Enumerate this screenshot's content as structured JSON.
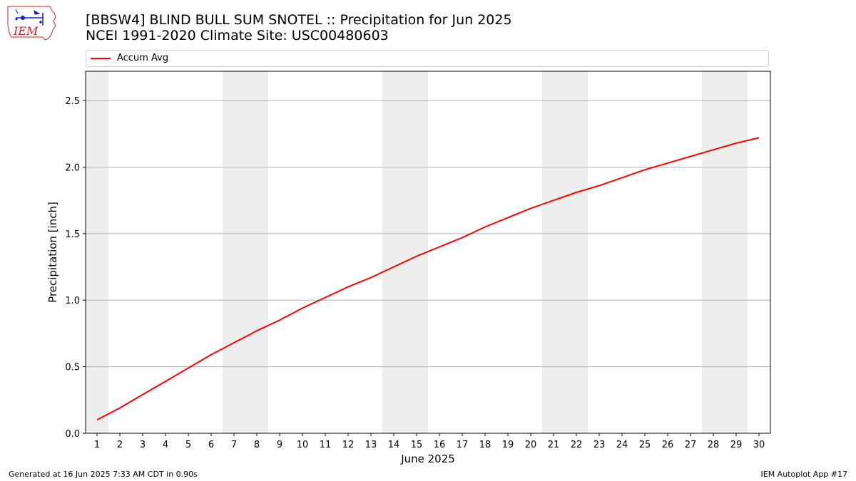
{
  "header": {
    "title": "[BBSW4] BLIND BULL SUM SNOTEL :: Precipitation for Jun 2025",
    "subtitle": "NCEI 1991-2020 Climate Site: USC00480603"
  },
  "logo": {
    "text": "IEM"
  },
  "footer": {
    "left": "Generated at 16 Jun 2025 7:33 AM CDT in 0.90s",
    "right": "IEM Autoplot App #17"
  },
  "colors": {
    "series": "#ff0000",
    "weekend": "#eeeeee",
    "grid": "#b0b0b0",
    "logo": "#cc2222",
    "logo_icons": "#1a1acc"
  },
  "chart_data": {
    "type": "line",
    "xlabel": "June 2025",
    "ylabel": "Precipitation [inch]",
    "x": [
      1,
      2,
      3,
      4,
      5,
      6,
      7,
      8,
      9,
      10,
      11,
      12,
      13,
      14,
      15,
      16,
      17,
      18,
      19,
      20,
      21,
      22,
      23,
      24,
      25,
      26,
      27,
      28,
      29,
      30
    ],
    "x_tick_labels": [
      "1",
      "2",
      "3",
      "4",
      "5",
      "6",
      "7",
      "8",
      "9",
      "10",
      "11",
      "12",
      "13",
      "14",
      "15",
      "16",
      "17",
      "18",
      "19",
      "20",
      "21",
      "22",
      "23",
      "24",
      "25",
      "26",
      "27",
      "28",
      "29",
      "30"
    ],
    "xlim": [
      0.5,
      30.5
    ],
    "ylim": [
      0,
      2.72
    ],
    "y_ticks": [
      0.0,
      0.5,
      1.0,
      1.5,
      2.0,
      2.5
    ],
    "y_tick_labels": [
      "0.0",
      "0.5",
      "1.0",
      "1.5",
      "2.0",
      "2.5"
    ],
    "grid": "y",
    "legend": "top",
    "shaded_days": [
      1,
      7,
      8,
      14,
      15,
      21,
      22,
      28,
      29
    ],
    "series": [
      {
        "name": "Accum Avg",
        "values": [
          0.1,
          0.19,
          0.29,
          0.39,
          0.49,
          0.59,
          0.68,
          0.77,
          0.85,
          0.94,
          1.02,
          1.1,
          1.17,
          1.25,
          1.33,
          1.4,
          1.47,
          1.55,
          1.62,
          1.69,
          1.75,
          1.81,
          1.86,
          1.92,
          1.98,
          2.03,
          2.08,
          2.13,
          2.18,
          2.22
        ]
      }
    ]
  }
}
